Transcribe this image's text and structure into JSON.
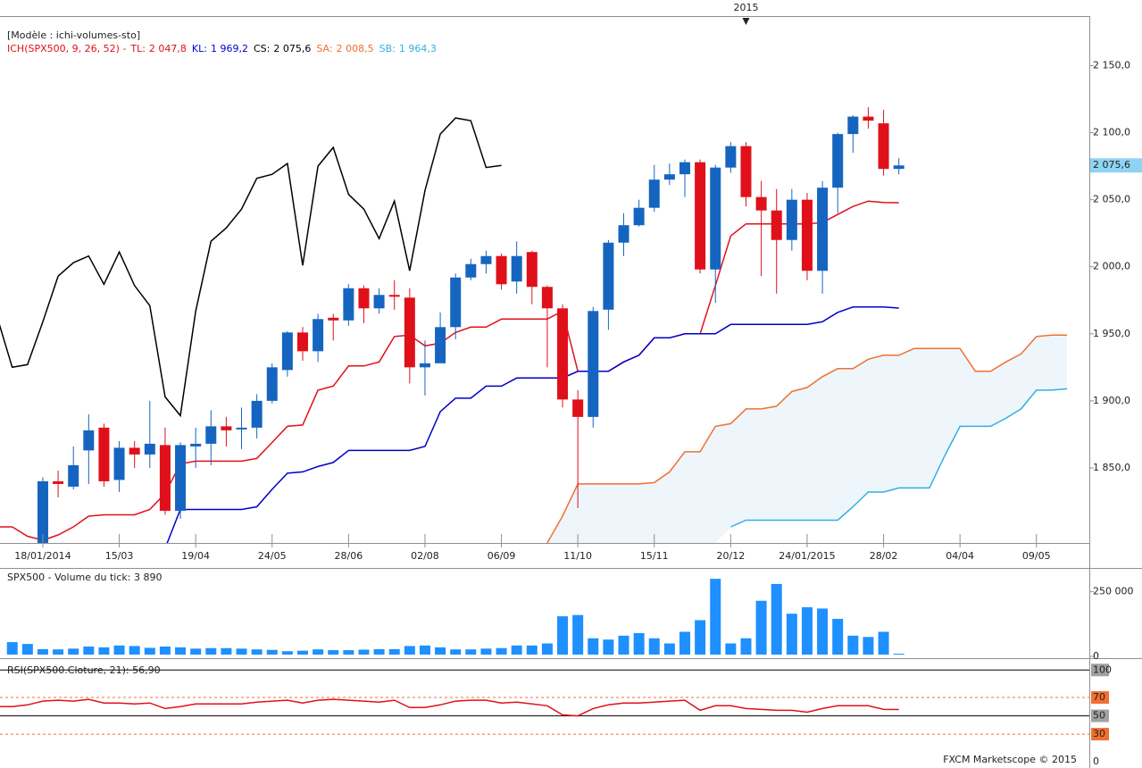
{
  "header": "[Modèle : ichi-volumes-sto]",
  "footer": "FXCM Marketscope © 2015",
  "chart_data": [
    {
      "type": "candlestick",
      "title": "ICH(SPX500, 9, 26, 52) -",
      "categories": [
        null,
        null,
        null,
        "18/01/2014",
        null,
        null,
        null,
        null,
        "15/03",
        null,
        null,
        null,
        null,
        "19/04",
        null,
        null,
        null,
        null,
        "24/05",
        null,
        null,
        null,
        null,
        "28/06",
        null,
        null,
        null,
        null,
        "02/08",
        null,
        null,
        null,
        null,
        "06/09",
        null,
        null,
        null,
        null,
        "11/10",
        null,
        null,
        null,
        null,
        "15/11",
        null,
        null,
        null,
        null,
        "20/12",
        null,
        null,
        null,
        null,
        "24/01/2015",
        null,
        null,
        null,
        null,
        "28/02",
        null,
        null,
        null,
        null,
        "04/04",
        null,
        null,
        null,
        null,
        "09/05",
        null,
        null,
        null
      ],
      "top_categories": [
        null,
        null,
        null,
        null,
        null,
        null,
        null,
        null,
        null,
        null,
        null,
        null,
        null,
        null,
        null,
        null,
        null,
        null,
        null,
        null,
        null,
        null,
        null,
        null,
        null,
        null,
        null,
        null,
        null,
        null,
        null,
        null,
        null,
        null,
        null,
        null,
        null,
        null,
        null,
        null,
        null,
        null,
        null,
        null,
        null,
        null,
        null,
        null,
        null,
        "2015",
        null,
        null,
        null,
        null,
        null,
        null,
        null,
        null,
        null,
        null,
        null,
        null,
        null,
        null,
        null,
        null,
        null,
        null,
        null,
        null,
        null,
        null
      ],
      "open": [
        null,
        null,
        null,
        1790,
        1840,
        1836,
        1863,
        1880,
        1841,
        1865,
        1860,
        1867,
        1818,
        1866,
        1868,
        1881,
        1879,
        1880,
        1900,
        1923,
        1951,
        1937,
        1962,
        1960,
        1984,
        1969,
        1979,
        1977,
        1925,
        1928,
        1955,
        1992,
        2002,
        2008,
        1989,
        2011,
        1985,
        1969,
        1901,
        1888,
        1968,
        2018,
        2031,
        2044,
        2065,
        2069,
        2078,
        1998,
        2074,
        2090,
        2052,
        2042,
        2020,
        2050,
        1997,
        2059,
        2099,
        2112,
        2107,
        2073,
        null,
        null,
        null,
        null,
        null,
        null,
        null,
        null,
        null,
        null,
        null,
        null
      ],
      "high": [
        null,
        null,
        null,
        1843,
        1848,
        1866,
        1890,
        1883,
        1870,
        1870,
        1900,
        1880,
        1869,
        1880,
        1893,
        1888,
        1895,
        1905,
        1928,
        1952,
        1955,
        1965,
        1965,
        1987,
        1986,
        1984,
        1990,
        1984,
        1945,
        1966,
        1995,
        2006,
        2012,
        2010,
        2019,
        2012,
        1986,
        1972,
        1908,
        1970,
        2020,
        2040,
        2050,
        2076,
        2077,
        2080,
        2080,
        2076,
        2093,
        2093,
        2064,
        2058,
        2058,
        2055,
        2064,
        2100,
        2113,
        2119,
        2117,
        2081,
        null,
        null,
        null,
        null,
        null,
        null,
        null,
        null,
        null,
        null,
        null,
        null
      ],
      "low": [
        null,
        null,
        null,
        1780,
        1828,
        1834,
        1838,
        1836,
        1832,
        1850,
        1850,
        1815,
        1812,
        1850,
        1852,
        1866,
        1864,
        1872,
        1898,
        1918,
        1930,
        1929,
        1945,
        1956,
        1958,
        1965,
        1968,
        1913,
        1904,
        1930,
        1946,
        1990,
        1995,
        1983,
        1980,
        1972,
        1925,
        1895,
        1820,
        1880,
        1953,
        2008,
        2030,
        2041,
        2061,
        2052,
        1995,
        1973,
        2070,
        2045,
        1993,
        1980,
        2012,
        1990,
        1980,
        2040,
        2085,
        2103,
        2068,
        2069,
        null,
        null,
        null,
        null,
        null,
        null,
        null,
        null,
        null,
        null,
        null,
        null
      ],
      "close": [
        null,
        null,
        null,
        1840,
        1838,
        1852,
        1878,
        1840,
        1865,
        1860,
        1868,
        1818,
        1867,
        1868,
        1881,
        1878,
        1880,
        1900,
        1925,
        1951,
        1937,
        1961,
        1960,
        1984,
        1969,
        1979,
        1978,
        1925,
        1928,
        1955,
        1992,
        2002,
        2008,
        1987,
        2008,
        1985,
        1969,
        1901,
        1888,
        1967,
        2018,
        2031,
        2044,
        2065,
        2069,
        2078,
        1998,
        2074,
        2090,
        2052,
        2042,
        2020,
        2050,
        1997,
        2059,
        2099,
        2112,
        2109,
        2073,
        2075.6,
        null,
        null,
        null,
        null,
        null,
        null,
        null,
        null,
        null,
        null,
        null,
        null
      ],
      "up_color": "#1565c0",
      "down_color": "#e0101a",
      "series": [
        {
          "name": "TL:",
          "last_label": "2 047,8",
          "color": "#e0101a",
          "values": [
            1806,
            1806,
            1799,
            1796,
            1800,
            1806,
            1814,
            1815,
            1815,
            1815,
            1819,
            1831,
            1853,
            1855,
            1855,
            1855,
            1855,
            1857,
            1869,
            1881,
            1882,
            1908,
            1911,
            1926,
            1926,
            1929,
            1948,
            1949,
            1941,
            1943,
            1951,
            1955,
            1955,
            1961,
            1961,
            1961,
            1961,
            1967,
            1922,
            1922,
            1922,
            1929,
            1934,
            1947,
            1947,
            1950,
            1950,
            1986,
            2023,
            2032,
            2032,
            2032,
            2032,
            2032,
            2033,
            2039,
            2045,
            2049,
            2048,
            2047.8,
            null,
            null,
            null,
            null,
            null,
            null,
            null,
            null,
            null,
            null,
            null,
            null
          ]
        },
        {
          "name": "KL:",
          "last_label": "1 969,2",
          "color": "#0000cc",
          "values": [
            null,
            null,
            null,
            null,
            null,
            null,
            null,
            null,
            null,
            null,
            null,
            1790,
            1819,
            1819,
            1819,
            1819,
            1819,
            1821,
            1834,
            1846,
            1847,
            1851,
            1854,
            1863,
            1863,
            1863,
            1863,
            1863,
            1866,
            1892,
            1902,
            1902,
            1911,
            1911,
            1917,
            1917,
            1917,
            1917,
            1922,
            1922,
            1922,
            1929,
            1934,
            1947,
            1947,
            1950,
            1950,
            1950,
            1957,
            1957,
            1957,
            1957,
            1957,
            1957,
            1959,
            1966,
            1970,
            1970,
            1970,
            1969.2,
            null,
            null,
            null,
            null,
            null,
            null,
            null,
            null,
            null,
            null,
            null,
            null
          ]
        },
        {
          "name": "CS:",
          "last_label": "2 075,6",
          "color": "#000000",
          "values": [
            1963,
            1925,
            1927,
            1959,
            1993,
            2003,
            2008,
            1987,
            2011,
            1986,
            1971,
            1903,
            1889,
            1967,
            2019,
            2029,
            2043,
            2066,
            2069,
            2077,
            2001,
            2075,
            2089,
            2054,
            2043,
            2021,
            2049,
            1997,
            2057,
            2099,
            2111,
            2109,
            2074,
            2075.6,
            null,
            null,
            null,
            null,
            null,
            null,
            null,
            null,
            null,
            null,
            null,
            null,
            null,
            null,
            null,
            null,
            null,
            null,
            null,
            null,
            null,
            null,
            null,
            null,
            null,
            null,
            null,
            null,
            null,
            null,
            null,
            null,
            null,
            null,
            null,
            null,
            null,
            null
          ]
        },
        {
          "name": "SA:",
          "last_label": "2 008,5",
          "color": "#f07030",
          "values": [
            null,
            null,
            null,
            null,
            null,
            null,
            null,
            null,
            null,
            null,
            null,
            null,
            null,
            null,
            null,
            null,
            null,
            null,
            null,
            null,
            null,
            null,
            null,
            null,
            null,
            null,
            null,
            null,
            null,
            null,
            null,
            null,
            null,
            null,
            null,
            null,
            1794,
            1814,
            1838,
            1838,
            1838,
            1838,
            1838,
            1839,
            1847,
            1862,
            1862,
            1881,
            1883,
            1894,
            1894,
            1896,
            1907,
            1910,
            1918,
            1924,
            1924,
            1931,
            1934,
            1934,
            1939,
            1939,
            1939,
            1939,
            1922,
            1922,
            1929,
            1935,
            1948,
            1949,
            1949,
            null
          ]
        },
        {
          "name": "SB:",
          "last_label": "1 964,3",
          "color": "#30b0e0",
          "values": [
            null,
            null,
            null,
            null,
            null,
            null,
            null,
            null,
            null,
            null,
            null,
            null,
            null,
            null,
            null,
            null,
            null,
            null,
            null,
            null,
            null,
            null,
            null,
            null,
            null,
            null,
            null,
            null,
            null,
            null,
            null,
            null,
            null,
            null,
            null,
            null,
            null,
            null,
            null,
            null,
            null,
            null,
            null,
            null,
            null,
            null,
            null,
            null,
            1806,
            1811,
            1811,
            1811,
            1811,
            1811,
            1811,
            1811,
            1821,
            1832,
            1832,
            1835,
            1835,
            1835,
            1859,
            1881,
            1881,
            1881,
            1887,
            1894,
            1908,
            1908,
            1909,
            null
          ]
        }
      ],
      "cloud_color": "#eef6fc",
      "ylim": [
        1794,
        2187
      ],
      "yticks": [
        {
          "value": 2150,
          "label": "2 150,0"
        },
        {
          "value": 2100,
          "label": "2 100,0"
        },
        {
          "value": 2050,
          "label": "2 050,0"
        },
        {
          "value": 2000,
          "label": "2 000,0"
        },
        {
          "value": 1950,
          "label": "1 950,0"
        },
        {
          "value": 1900,
          "label": "1 900,0"
        },
        {
          "value": 1850,
          "label": "1 850,0"
        }
      ],
      "last_price_label": "2 075,6",
      "last_price_color": "#8fd3f4"
    },
    {
      "type": "bar",
      "title": "SPX500 - Volume du tick: 3 890",
      "color": "#1e90ff",
      "values": [
        null,
        55000,
        48000,
        28000,
        27000,
        30000,
        38000,
        35000,
        42000,
        40000,
        33000,
        38000,
        35000,
        30000,
        32000,
        32000,
        30000,
        27000,
        25000,
        20000,
        22000,
        27000,
        24000,
        24000,
        26000,
        28000,
        28000,
        40000,
        42000,
        35000,
        27000,
        27000,
        30000,
        32000,
        42000,
        42000,
        50000,
        155000,
        160000,
        70000,
        65000,
        80000,
        90000,
        70000,
        50000,
        95000,
        140000,
        300000,
        50000,
        70000,
        215000,
        280000,
        165000,
        190000,
        185000,
        145000,
        80000,
        75000,
        95000,
        3890,
        null,
        null,
        null,
        null,
        null,
        null,
        null,
        null,
        null,
        null,
        null,
        null
      ],
      "ylim": [
        0,
        335000
      ],
      "yticks": [
        {
          "value": 250000,
          "label": "250 000"
        },
        0
      ]
    },
    {
      "type": "line",
      "title": "RSI(SPX500.Cloture, 21): 56,90",
      "color": "#e0101a",
      "values": [
        60,
        60,
        62,
        66,
        67,
        66,
        68,
        64,
        64,
        63,
        64,
        58,
        60,
        63,
        63,
        63,
        63,
        65,
        66,
        67,
        64,
        67,
        68,
        67,
        66,
        65,
        67,
        59,
        59,
        62,
        66,
        67,
        67,
        64,
        65,
        63,
        61,
        51,
        50,
        58,
        62,
        64,
        64,
        65,
        66,
        67,
        56,
        61,
        61,
        58,
        57,
        56,
        56,
        54,
        58,
        61,
        61,
        61,
        57,
        56.9,
        null,
        null,
        null,
        null,
        null,
        null,
        null,
        null,
        null,
        null,
        null,
        null
      ],
      "ylim": [
        -5,
        110
      ],
      "yticks": [
        100,
        70,
        50,
        30,
        0
      ],
      "ytick_box_colors": [
        "#a0a0a0",
        "#f07030",
        "#a0a0a0",
        "#f07030",
        "#ffffff"
      ],
      "ytick_line_colors": [
        "#000000",
        "#f07030",
        "#000000",
        "#f07030",
        null
      ],
      "ytick_line_dash": [
        false,
        true,
        false,
        true,
        false
      ]
    }
  ]
}
